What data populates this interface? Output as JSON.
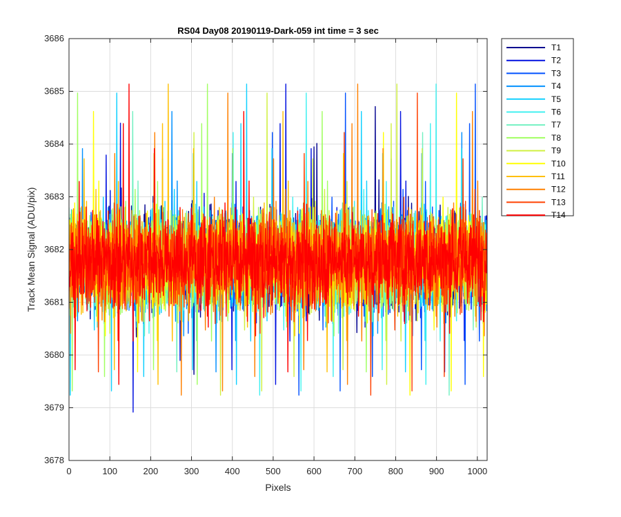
{
  "chart_data": {
    "type": "line",
    "title": "RS04 Day08 20190119-Dark-059 int time = 3 sec",
    "xlabel": "Pixels",
    "ylabel": "Track Mean Signal (ADU/pix)",
    "xlim": [
      0,
      1024
    ],
    "ylim": [
      3678,
      3686
    ],
    "xticks": [
      0,
      100,
      200,
      300,
      400,
      500,
      600,
      700,
      800,
      900,
      1000
    ],
    "yticks": [
      3678,
      3679,
      3680,
      3681,
      3682,
      3683,
      3684,
      3685,
      3686
    ],
    "grid": true,
    "legend_position": "outside-top-right",
    "n_points": 1024,
    "noise_model": {
      "center": 3681.8,
      "typical_range": [
        3679.5,
        3684.5
      ],
      "extremes": [
        3678.1,
        3685.6
      ]
    },
    "series": [
      {
        "name": "T1",
        "color": "#00008f"
      },
      {
        "name": "T2",
        "color": "#0010e0"
      },
      {
        "name": "T3",
        "color": "#0050ff"
      },
      {
        "name": "T4",
        "color": "#0090ff"
      },
      {
        "name": "T5",
        "color": "#10d0ff"
      },
      {
        "name": "T6",
        "color": "#40f0f0"
      },
      {
        "name": "T7",
        "color": "#70f0c0"
      },
      {
        "name": "T8",
        "color": "#a0ff60"
      },
      {
        "name": "T9",
        "color": "#d0f040"
      },
      {
        "name": "T10",
        "color": "#ffff00"
      },
      {
        "name": "T11",
        "color": "#ffbf00"
      },
      {
        "name": "T12",
        "color": "#ff8000"
      },
      {
        "name": "T13",
        "color": "#ff4000"
      },
      {
        "name": "T14",
        "color": "#ff0000"
      }
    ]
  }
}
